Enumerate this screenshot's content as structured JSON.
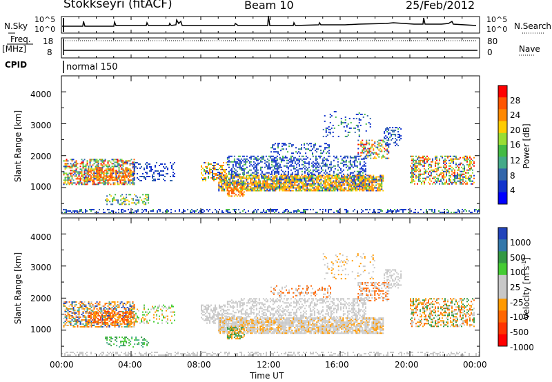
{
  "header": {
    "station": "Stokkseyri (fitACF)",
    "beam": "Beam 10",
    "date": "25/Feb/2012"
  },
  "strip_labels": {
    "nsky": "N.Sky",
    "nsearch": "N.Search",
    "freq_line1": "Freq.",
    "freq_line2": "[MHz]",
    "nave": "Nave",
    "cpid": "CPID",
    "cpid_value": "normal 150"
  },
  "strip_ticks": {
    "nsky_top": "10^5",
    "nsky_bottom": "10^0",
    "freq_top": "18",
    "freq_bottom": "8",
    "nave_top": "80",
    "nave_bottom": "0"
  },
  "power_scale": {
    "title": "Power [dB]",
    "ticks": [
      "28",
      "24",
      "20",
      "16",
      "12",
      "8",
      "4"
    ],
    "colors": [
      "#ff0000",
      "#ff5500",
      "#ff8800",
      "#ffcc00",
      "#99dd33",
      "#44bb44",
      "#44aa88",
      "#3366aa",
      "#1133cc",
      "#0000ff"
    ]
  },
  "velocity_scale": {
    "title": "Velocity [m s",
    "title_sup": "-1",
    "title_end": "]",
    "ticks": [
      "1000",
      "500",
      "100",
      "25",
      "-25",
      "-100",
      "-500",
      "-1000"
    ],
    "colors": [
      "#2244bb",
      "#3377aa",
      "#339944",
      "#44cc33",
      "#c8c8c8",
      "#c8c8c8",
      "#ff9900",
      "#ff6600",
      "#ff3300",
      "#ff0000"
    ]
  },
  "chart_data": [
    {
      "type": "heatmap",
      "panel": "power",
      "ylabel": "Slant Range [km]",
      "xlabel": "",
      "x_ticks": [
        "00:00",
        "04:00",
        "08:00",
        "12:00",
        "16:00",
        "20:00",
        "00:00"
      ],
      "y_ticks": [
        "1000",
        "2000",
        "3000",
        "4000"
      ],
      "ylim": [
        180,
        4500
      ],
      "color_scale": "power_scale"
    },
    {
      "type": "heatmap",
      "panel": "velocity",
      "ylabel": "Slant Range [km]",
      "xlabel": "Time UT",
      "x_ticks": [
        "00:00",
        "04:00",
        "08:00",
        "12:00",
        "16:00",
        "20:00",
        "00:00"
      ],
      "y_ticks": [
        "1000",
        "2000",
        "3000",
        "4000"
      ],
      "ylim": [
        180,
        4500
      ],
      "color_scale": "velocity_scale"
    }
  ]
}
